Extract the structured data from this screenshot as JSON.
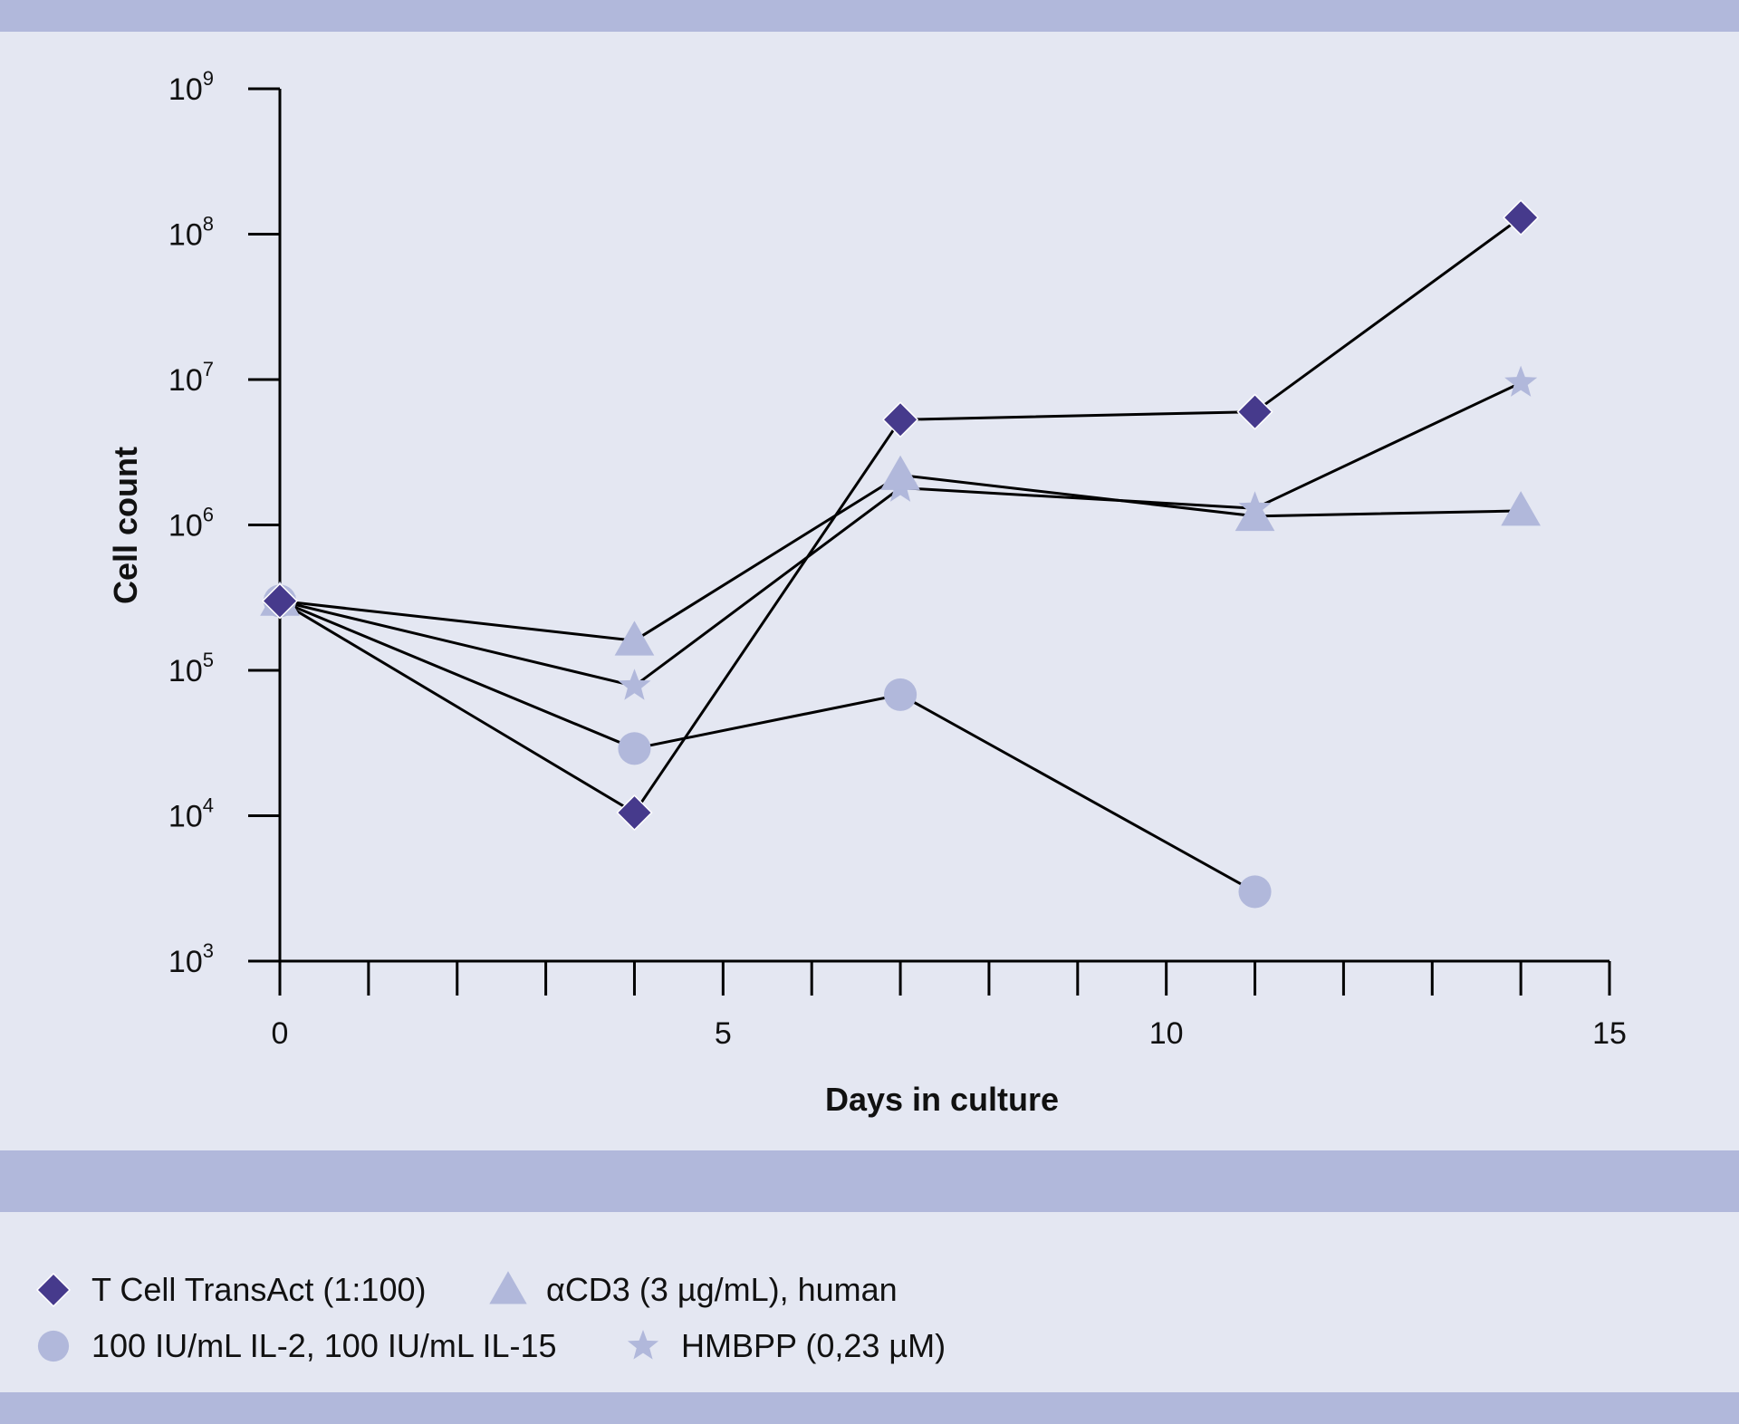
{
  "chart_data": {
    "type": "line",
    "title": "",
    "xlabel": "Days in culture",
    "ylabel": "Cell count",
    "x_scale": "linear",
    "y_scale": "log",
    "xlim": [
      0,
      15
    ],
    "ylim": [
      1000,
      1000000000
    ],
    "x_ticks": [
      0,
      5,
      10,
      15
    ],
    "x_minor_ticks": [
      1,
      2,
      3,
      4,
      6,
      7,
      8,
      9,
      11,
      12,
      13,
      14
    ],
    "y_ticks": [
      {
        "value": 1000,
        "base": "10",
        "exp": "3"
      },
      {
        "value": 10000,
        "base": "10",
        "exp": "4"
      },
      {
        "value": 100000,
        "base": "10",
        "exp": "5"
      },
      {
        "value": 1000000,
        "base": "10",
        "exp": "6"
      },
      {
        "value": 10000000,
        "base": "10",
        "exp": "7"
      },
      {
        "value": 100000000,
        "base": "10",
        "exp": "8"
      },
      {
        "value": 1000000000,
        "base": "10",
        "exp": "9"
      }
    ],
    "series": [
      {
        "name": "T Cell TransAct (1:100)",
        "marker": "diamond",
        "color": "#463a8c",
        "points": [
          [
            0,
            300000
          ],
          [
            4,
            10500
          ],
          [
            7,
            5300000
          ],
          [
            11,
            6000000
          ],
          [
            14,
            130000000
          ]
        ]
      },
      {
        "name": "αCD3 (3 µg/mL), human",
        "marker": "triangle",
        "color": "#b1b8db",
        "points": [
          [
            0,
            300000
          ],
          [
            4,
            160000
          ],
          [
            7,
            2200000
          ],
          [
            11,
            1150000
          ],
          [
            14,
            1250000
          ]
        ]
      },
      {
        "name": "100 IU/mL IL-2, 100 IU/mL IL-15",
        "marker": "circle",
        "color": "#b1b8db",
        "points": [
          [
            0,
            300000
          ],
          [
            4,
            29000
          ],
          [
            7,
            68000
          ],
          [
            11,
            3000
          ]
        ]
      },
      {
        "name": "HMBPP (0,23 µM)",
        "marker": "star",
        "color": "#b1b8db",
        "points": [
          [
            0,
            300000
          ],
          [
            4,
            78000
          ],
          [
            7,
            1800000
          ],
          [
            11,
            1300000
          ],
          [
            14,
            9500000
          ]
        ]
      }
    ]
  },
  "legend": {
    "items": [
      {
        "label": "T Cell TransAct (1:100)",
        "marker": "diamond",
        "color": "#463a8c"
      },
      {
        "label": "αCD3 (3 µg/mL), human",
        "marker": "triangle",
        "color": "#b1b8db"
      },
      {
        "label": "100 IU/mL IL-2, 100 IU/mL IL-15",
        "marker": "circle",
        "color": "#b1b8db"
      },
      {
        "label": "HMBPP (0,23 µM)",
        "marker": "star",
        "color": "#b1b8db"
      }
    ]
  },
  "colors": {
    "background": "#e4e7f2",
    "band": "#b1b8db",
    "dark_marker": "#463a8c",
    "light_marker": "#b1b8db"
  }
}
